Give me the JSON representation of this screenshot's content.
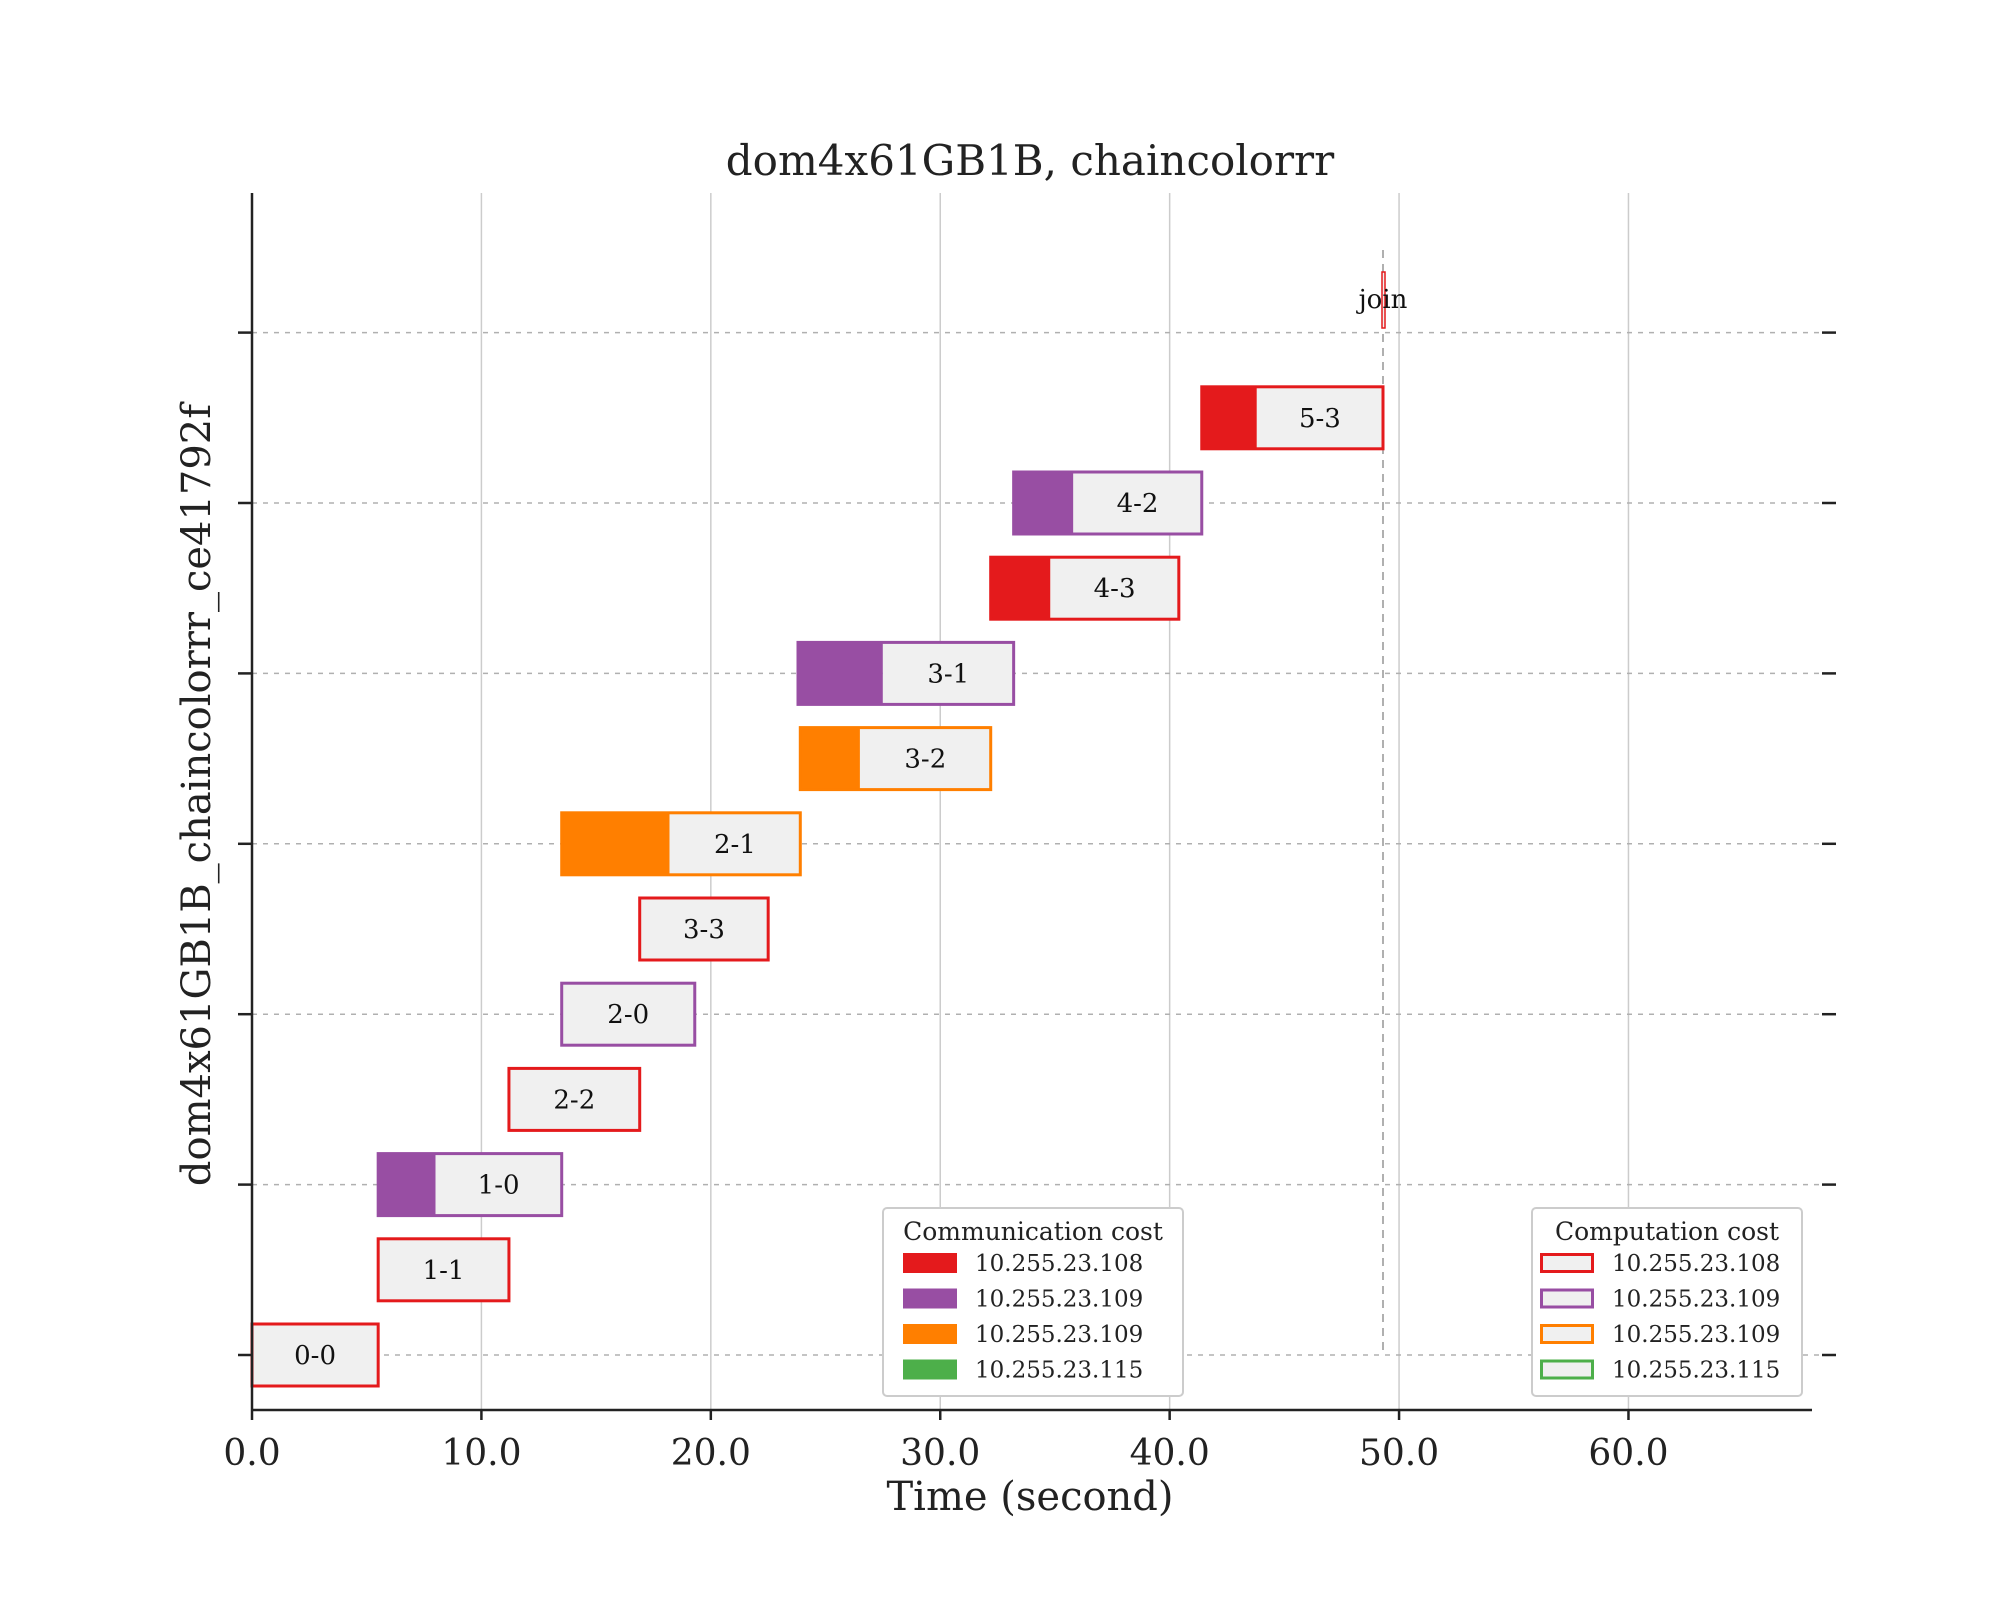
{
  "chart_data": {
    "type": "gantt",
    "title": "dom4x61GB1B, chaincolorrr",
    "xlabel": "Time (second)",
    "ylabel": "dom4x61GB1B_chaincolorrr_ce41792f",
    "xlim": [
      0,
      68
    ],
    "xticks": [
      "0.0",
      "10.0",
      "20.0",
      "30.0",
      "40.0",
      "50.0",
      "60.0"
    ],
    "xtick_values": [
      0,
      10,
      20,
      30,
      40,
      50,
      60
    ],
    "grid": true,
    "join": {
      "label": "join",
      "time": 49.3
    },
    "hosts": [
      {
        "name": "10.255.23.108",
        "color": "#e41a1c"
      },
      {
        "name": "10.255.23.109",
        "color": "#984ea3"
      },
      {
        "name": "10.255.23.109",
        "color": "#ff7f00"
      },
      {
        "name": "10.255.23.115",
        "color": "#4daf4a"
      }
    ],
    "tasks": [
      {
        "label": "0-0",
        "row": 0,
        "host": 0,
        "start": 0.0,
        "comm_end": 0.0,
        "end": 5.5
      },
      {
        "label": "1-1",
        "row": 1,
        "host": 0,
        "start": 5.5,
        "comm_end": 5.5,
        "end": 11.2
      },
      {
        "label": "1-0",
        "row": 2,
        "host": 1,
        "start": 5.5,
        "comm_end": 8.0,
        "end": 13.5
      },
      {
        "label": "2-2",
        "row": 3,
        "host": 0,
        "start": 11.2,
        "comm_end": 11.2,
        "end": 16.9
      },
      {
        "label": "2-0",
        "row": 4,
        "host": 1,
        "start": 13.5,
        "comm_end": 13.5,
        "end": 19.3
      },
      {
        "label": "3-3",
        "row": 5,
        "host": 0,
        "start": 16.9,
        "comm_end": 16.9,
        "end": 22.5
      },
      {
        "label": "2-1",
        "row": 6,
        "host": 2,
        "start": 13.5,
        "comm_end": 18.2,
        "end": 23.9
      },
      {
        "label": "3-2",
        "row": 7,
        "host": 2,
        "start": 23.9,
        "comm_end": 26.5,
        "end": 32.2
      },
      {
        "label": "3-1",
        "row": 8,
        "host": 1,
        "start": 23.8,
        "comm_end": 27.5,
        "end": 33.2
      },
      {
        "label": "4-3",
        "row": 9,
        "host": 0,
        "start": 32.2,
        "comm_end": 34.8,
        "end": 40.4
      },
      {
        "label": "4-2",
        "row": 10,
        "host": 1,
        "start": 33.2,
        "comm_end": 35.8,
        "end": 41.4
      },
      {
        "label": "5-3",
        "row": 11,
        "host": 0,
        "start": 41.4,
        "comm_end": 43.8,
        "end": 49.3
      }
    ],
    "legend_comm": {
      "title": "Communication cost",
      "placement": "bottom-center",
      "entries": [
        "10.255.23.108",
        "10.255.23.109",
        "10.255.23.109",
        "10.255.23.115"
      ]
    },
    "legend_comp": {
      "title": "Computation cost",
      "placement": "bottom-right",
      "entries": [
        "10.255.23.108",
        "10.255.23.109",
        "10.255.23.109",
        "10.255.23.115"
      ]
    },
    "compute_fill": "#f0f0f0"
  }
}
